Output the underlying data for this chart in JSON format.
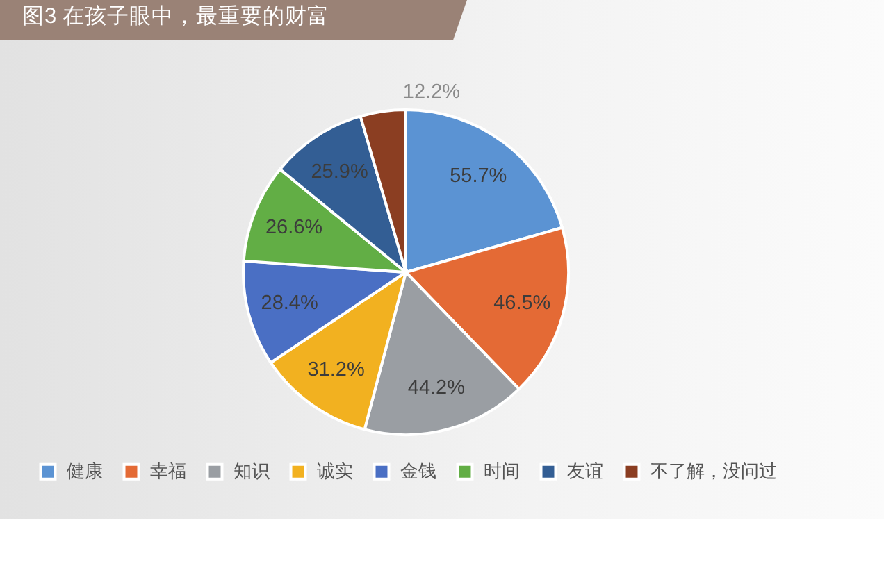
{
  "chart_data": {
    "type": "pie",
    "title": "图3  在孩子眼中，最重要的财富",
    "categories": [
      "健康",
      "幸福",
      "知识",
      "诚实",
      "金钱",
      "时间",
      "友谊",
      "不了解，没问过"
    ],
    "values": [
      55.7,
      46.5,
      44.2,
      31.2,
      28.4,
      26.6,
      25.9,
      12.2
    ],
    "colors": [
      "#5b93d3",
      "#e46a35",
      "#9a9ea3",
      "#f2b120",
      "#4a6fc4",
      "#62ae45",
      "#335e94",
      "#8b3e22"
    ],
    "value_labels": [
      "55.7%",
      "46.5%",
      "44.2%",
      "31.2%",
      "28.4%",
      "26.6%",
      "25.9%",
      "12.2%"
    ],
    "legend": "bottom"
  }
}
